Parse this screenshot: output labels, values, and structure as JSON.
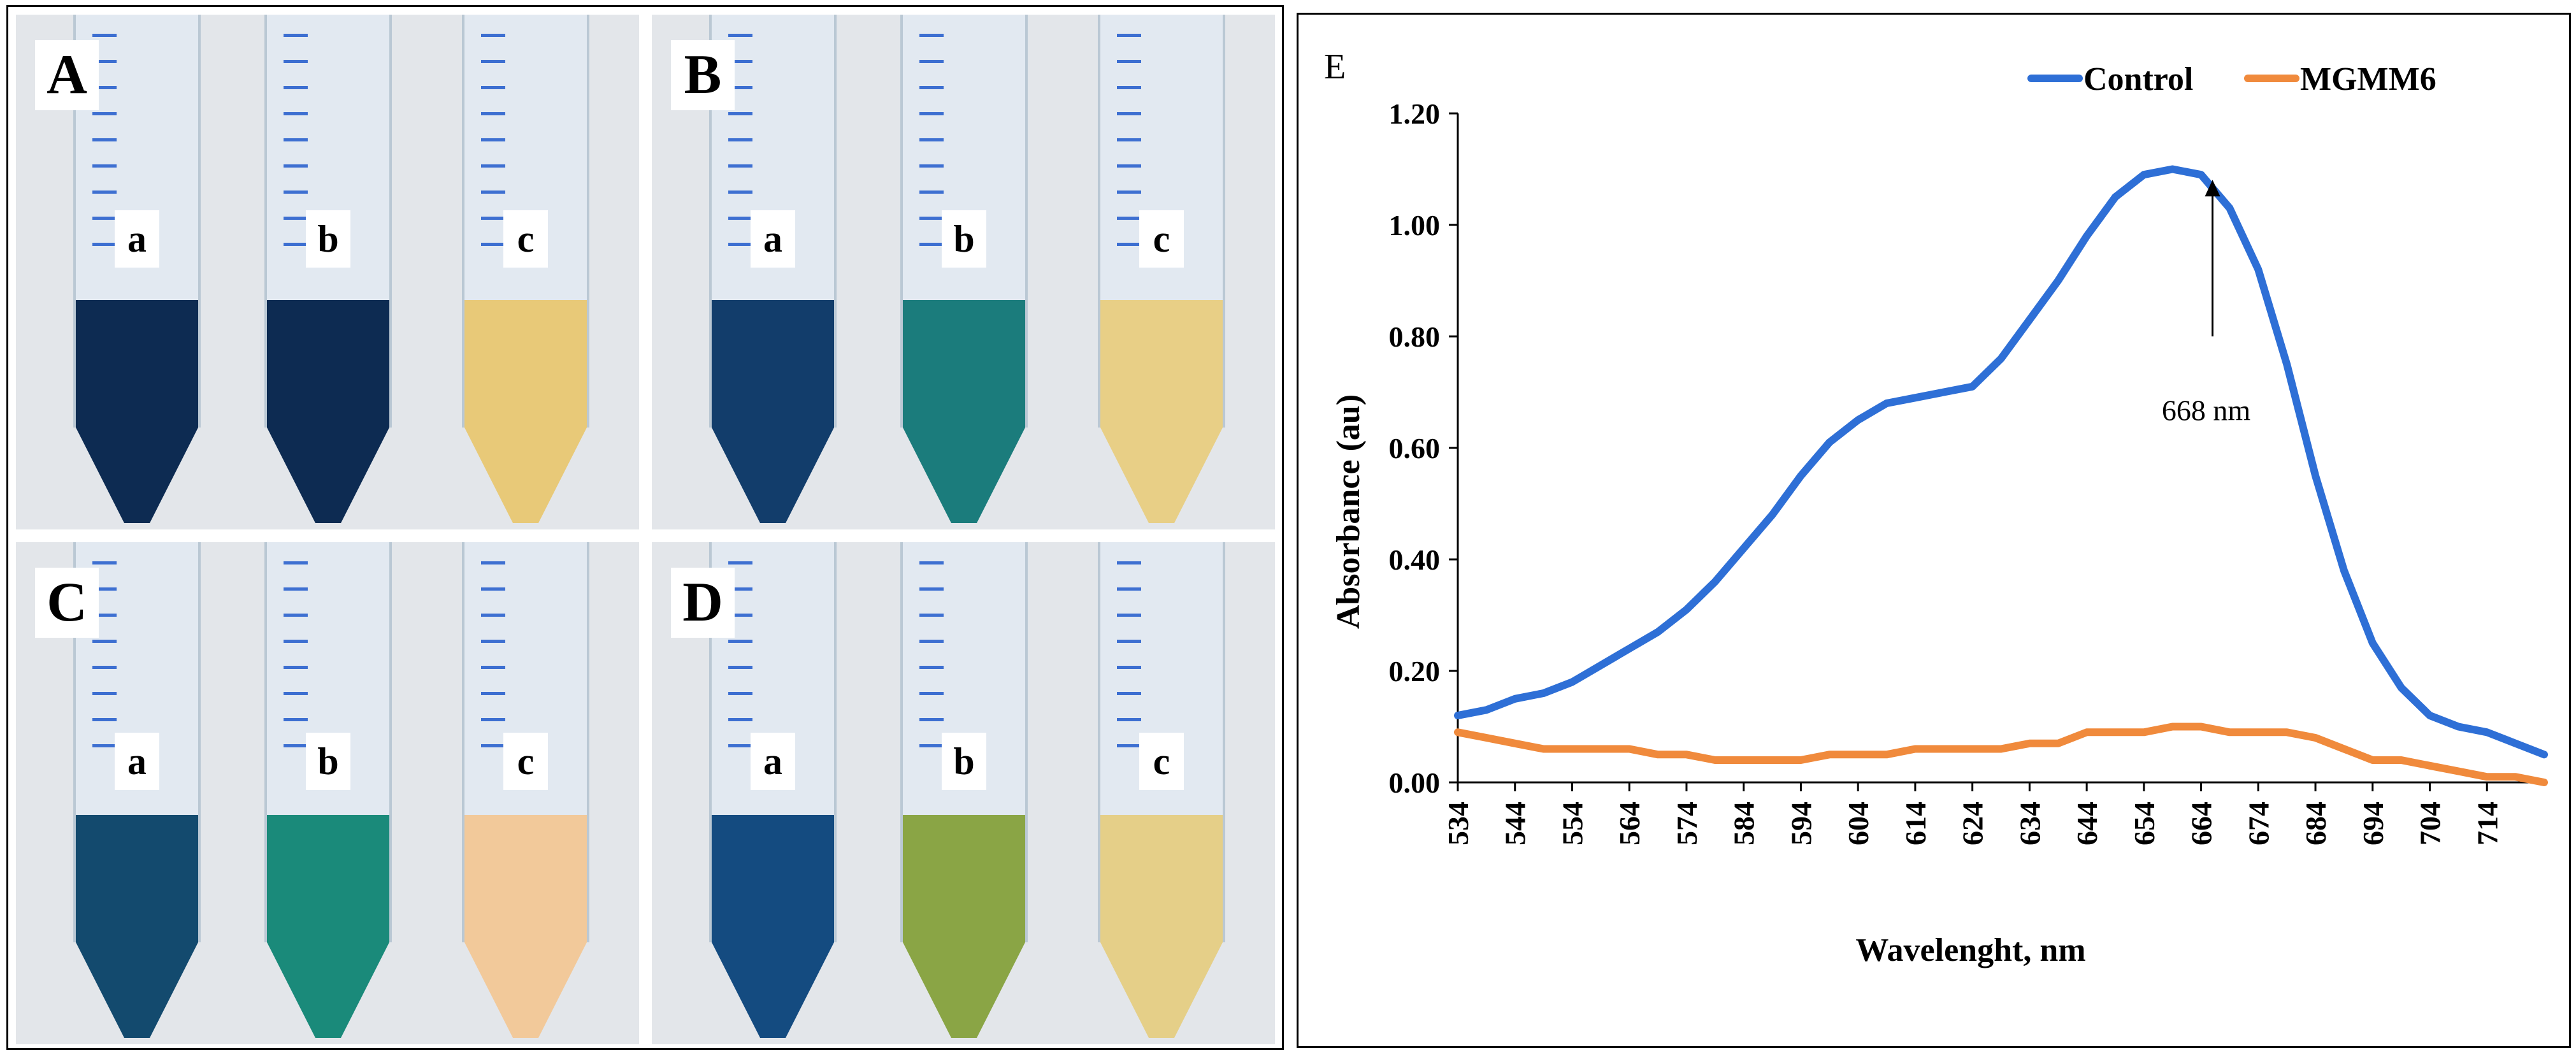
{
  "panels": {
    "A": {
      "letter": "A",
      "tubes": [
        {
          "label": "a",
          "color": "#0d2b52"
        },
        {
          "label": "b",
          "color": "#0d2b52"
        },
        {
          "label": "c",
          "color": "#e8c978"
        }
      ]
    },
    "B": {
      "letter": "B",
      "tubes": [
        {
          "label": "a",
          "color": "#123d6b"
        },
        {
          "label": "b",
          "color": "#1b7c7c"
        },
        {
          "label": "c",
          "color": "#e8cf86"
        }
      ]
    },
    "C": {
      "letter": "C",
      "tubes": [
        {
          "label": "a",
          "color": "#134a6e"
        },
        {
          "label": "b",
          "color": "#1a8a7a"
        },
        {
          "label": "c",
          "color": "#f2c99a"
        }
      ]
    },
    "D": {
      "letter": "D",
      "tubes": [
        {
          "label": "a",
          "color": "#144b80"
        },
        {
          "label": "b",
          "color": "#8aa545"
        },
        {
          "label": "c",
          "color": "#e5cf88"
        }
      ]
    }
  },
  "chart_data": {
    "type": "line",
    "panel_letter": "E",
    "xlabel": "Wavelenght, nm",
    "ylabel": "Absorbance (au)",
    "xlim": [
      534,
      724
    ],
    "ylim": [
      0,
      1.2
    ],
    "y_ticks": [
      "0.00",
      "0.20",
      "0.40",
      "0.60",
      "0.80",
      "1.00",
      "1.20"
    ],
    "x_ticks": [
      "534",
      "544",
      "554",
      "564",
      "574",
      "584",
      "594",
      "604",
      "614",
      "624",
      "634",
      "644",
      "654",
      "664",
      "674",
      "684",
      "694",
      "704",
      "714"
    ],
    "legend_position": "top-right",
    "annotation": {
      "text": "668 nm",
      "x": 666,
      "y": 1.09
    },
    "series": [
      {
        "name": "Control",
        "color": "#2e6fd6",
        "x": [
          534,
          539,
          544,
          549,
          554,
          559,
          564,
          569,
          574,
          579,
          584,
          589,
          594,
          599,
          604,
          609,
          614,
          619,
          624,
          629,
          634,
          639,
          644,
          649,
          654,
          659,
          664,
          669,
          674,
          679,
          684,
          689,
          694,
          699,
          704,
          709,
          714,
          719,
          724
        ],
        "y": [
          0.12,
          0.13,
          0.15,
          0.16,
          0.18,
          0.21,
          0.24,
          0.27,
          0.31,
          0.36,
          0.42,
          0.48,
          0.55,
          0.61,
          0.65,
          0.68,
          0.69,
          0.7,
          0.71,
          0.76,
          0.83,
          0.9,
          0.98,
          1.05,
          1.09,
          1.1,
          1.09,
          1.03,
          0.92,
          0.75,
          0.55,
          0.38,
          0.25,
          0.17,
          0.12,
          0.1,
          0.09,
          0.07,
          0.05
        ]
      },
      {
        "name": "MGMM6",
        "color": "#f08a3c",
        "x": [
          534,
          539,
          544,
          549,
          554,
          559,
          564,
          569,
          574,
          579,
          584,
          589,
          594,
          599,
          604,
          609,
          614,
          619,
          624,
          629,
          634,
          639,
          644,
          649,
          654,
          659,
          664,
          669,
          674,
          679,
          684,
          689,
          694,
          699,
          704,
          709,
          714,
          719,
          724
        ],
        "y": [
          0.09,
          0.08,
          0.07,
          0.06,
          0.06,
          0.06,
          0.06,
          0.05,
          0.05,
          0.04,
          0.04,
          0.04,
          0.04,
          0.05,
          0.05,
          0.05,
          0.06,
          0.06,
          0.06,
          0.06,
          0.07,
          0.07,
          0.09,
          0.09,
          0.09,
          0.1,
          0.1,
          0.09,
          0.09,
          0.09,
          0.08,
          0.06,
          0.04,
          0.04,
          0.03,
          0.02,
          0.01,
          0.01,
          0.0
        ]
      }
    ]
  }
}
